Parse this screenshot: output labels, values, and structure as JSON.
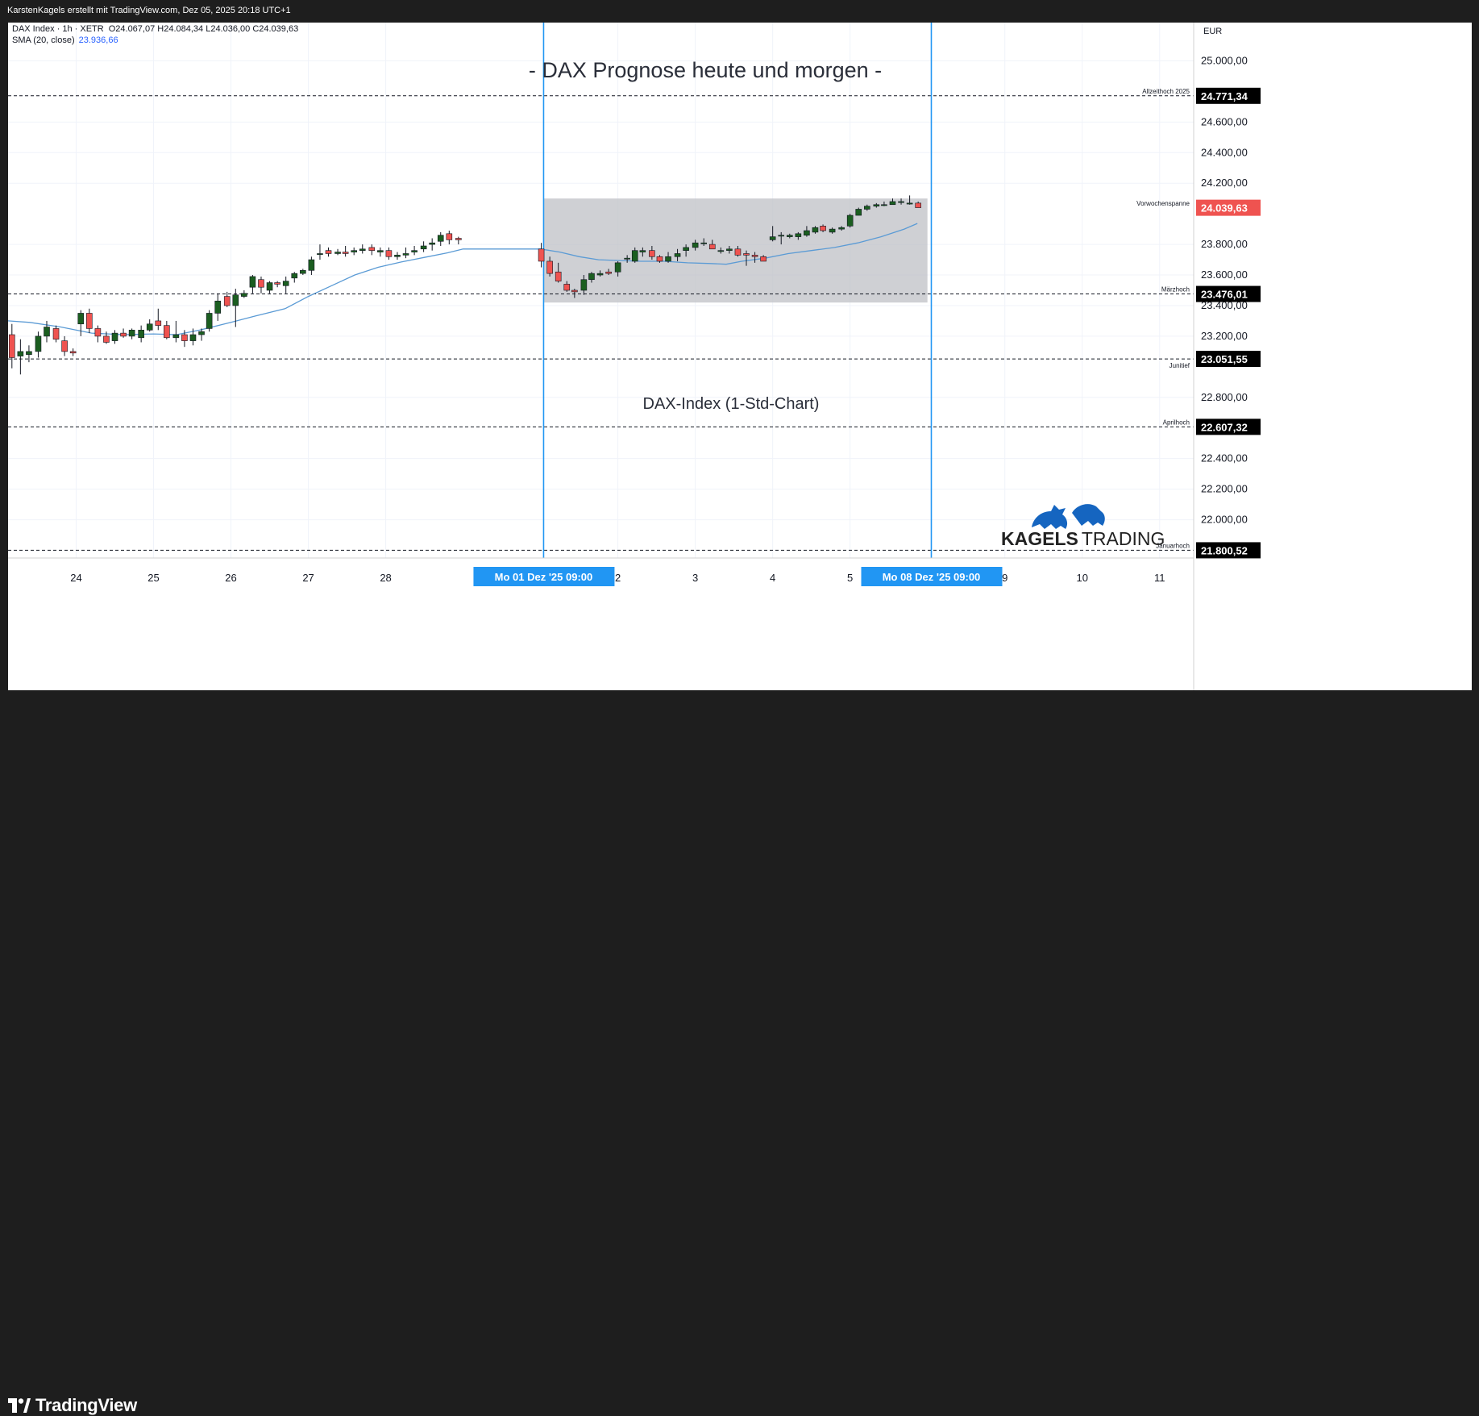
{
  "attribution": "KarstenKagels erstellt mit TradingView.com, Dez 05, 2025 20:18 UTC+1",
  "legend": {
    "symbol": "DAX Index · 1h · XETR",
    "ohlc": "O24.067,07  H24.084,34  L24.036,00  C24.039,63",
    "sma_label": "SMA (20, close)",
    "sma_value": "23.936,66"
  },
  "currency": "EUR",
  "chart_title": "- DAX Prognose heute und morgen -",
  "chart_subtitle": "DAX-Index (1-Std-Chart)",
  "brand": {
    "name": "KAGELS TRADING",
    "color": "#1565c0",
    "icon": "bull-and-bear-icon"
  },
  "footer_logo": {
    "text": "TradingView",
    "icon": "tradingview-logo-icon"
  },
  "colors": {
    "up": "#1b5e20",
    "down": "#ef5350",
    "sma": "#5b9bd5",
    "vline": "#2196f3",
    "price_tag": "#ef5350",
    "box": "#bdbec4"
  },
  "chart_data": {
    "type": "candlestick",
    "title": "- DAX Prognose heute und morgen -",
    "subtitle": "DAX-Index (1-Std-Chart)",
    "ylim": [
      21750,
      25250
    ],
    "y_ticks": [
      {
        "value": 25000,
        "label": "25.000,00"
      },
      {
        "value": 24600,
        "label": "24.600,00"
      },
      {
        "value": 24400,
        "label": "24.400,00"
      },
      {
        "value": 24200,
        "label": "24.200,00"
      },
      {
        "value": 23800,
        "label": "23.800,00"
      },
      {
        "value": 23600,
        "label": "23.600,00"
      },
      {
        "value": 23400,
        "label": "23.400,00"
      },
      {
        "value": 23200,
        "label": "23.200,00"
      },
      {
        "value": 22800,
        "label": "22.800,00"
      },
      {
        "value": 22400,
        "label": "22.400,00"
      },
      {
        "value": 22200,
        "label": "22.200,00"
      },
      {
        "value": 22000,
        "label": "22.000,00"
      }
    ],
    "x_ticks": [
      {
        "x": 24,
        "label": "24"
      },
      {
        "x": 25,
        "label": "25"
      },
      {
        "x": 26,
        "label": "26"
      },
      {
        "x": 27,
        "label": "27"
      },
      {
        "x": 28,
        "label": "28"
      },
      {
        "x": 31,
        "label": "2"
      },
      {
        "x": 32,
        "label": "3"
      },
      {
        "x": 33,
        "label": "4"
      },
      {
        "x": 34,
        "label": "5"
      },
      {
        "x": 36,
        "label": "9"
      },
      {
        "x": 37,
        "label": "10"
      },
      {
        "x": 38,
        "label": "11"
      }
    ],
    "x_range": [
      23.12,
      38.44
    ],
    "levels": [
      {
        "price": 24771.34,
        "label": "24.771,34",
        "name": "Allzeithoch 2025",
        "name_pos": "above"
      },
      {
        "price": 23476.01,
        "label": "23.476,01",
        "name": "Märzhoch",
        "name_pos": "above"
      },
      {
        "price": 23051.55,
        "label": "23.051,55",
        "name": "Junitief",
        "name_pos": "below"
      },
      {
        "price": 22607.32,
        "label": "22.607,32",
        "name": "Aprilhoch",
        "name_pos": "above"
      },
      {
        "price": 21800.52,
        "label": "21.800,52",
        "name": "Januarhoch",
        "name_pos": "above"
      }
    ],
    "current_price": {
      "price": 24039.63,
      "label": "24.039,63"
    },
    "range_box": {
      "x_start": 30.04,
      "x_end": 35.0,
      "top": 24100,
      "bottom": 23420,
      "label": "Vorwochenspanne"
    },
    "vertical_markers": [
      {
        "x": 30.04,
        "label": "Mo 01 Dez '25   09:00"
      },
      {
        "x": 35.05,
        "label": "Mo 08 Dez '25   09:00"
      }
    ],
    "candles": [
      [
        23.17,
        23210,
        23280,
        22990,
        23060
      ],
      [
        23.28,
        23070,
        23180,
        22950,
        23100
      ],
      [
        23.39,
        23080,
        23140,
        23030,
        23100
      ],
      [
        23.51,
        23100,
        23230,
        23060,
        23200
      ],
      [
        23.62,
        23200,
        23300,
        23160,
        23260
      ],
      [
        23.74,
        23250,
        23270,
        23160,
        23180
      ],
      [
        23.85,
        23170,
        23200,
        23070,
        23100
      ],
      [
        23.96,
        23100,
        23120,
        23070,
        23090
      ],
      [
        24.06,
        23280,
        23370,
        23200,
        23350
      ],
      [
        24.17,
        23350,
        23380,
        23220,
        23250
      ],
      [
        24.28,
        23250,
        23270,
        23160,
        23200
      ],
      [
        24.39,
        23200,
        23230,
        23150,
        23160
      ],
      [
        24.5,
        23170,
        23240,
        23150,
        23220
      ],
      [
        24.61,
        23220,
        23250,
        23190,
        23200
      ],
      [
        24.72,
        23200,
        23250,
        23180,
        23240
      ],
      [
        24.84,
        23190,
        23270,
        23160,
        23240
      ],
      [
        24.95,
        23240,
        23310,
        23230,
        23280
      ],
      [
        25.06,
        23300,
        23380,
        23240,
        23270
      ],
      [
        25.17,
        23270,
        23300,
        23180,
        23190
      ],
      [
        25.29,
        23190,
        23300,
        23160,
        23210
      ],
      [
        25.4,
        23210,
        23240,
        23130,
        23170
      ],
      [
        25.51,
        23170,
        23250,
        23140,
        23210
      ],
      [
        25.62,
        23210,
        23250,
        23170,
        23230
      ],
      [
        25.72,
        23250,
        23370,
        23230,
        23350
      ],
      [
        25.83,
        23350,
        23480,
        23300,
        23430
      ],
      [
        25.95,
        23460,
        23490,
        23390,
        23400
      ],
      [
        26.06,
        23400,
        23510,
        23260,
        23470
      ],
      [
        26.17,
        23460,
        23500,
        23450,
        23480
      ],
      [
        26.28,
        23520,
        23600,
        23480,
        23590
      ],
      [
        26.39,
        23570,
        23590,
        23480,
        23520
      ],
      [
        26.5,
        23500,
        23560,
        23480,
        23550
      ],
      [
        26.6,
        23550,
        23560,
        23520,
        23540
      ],
      [
        26.71,
        23530,
        23590,
        23480,
        23560
      ],
      [
        26.82,
        23580,
        23620,
        23550,
        23610
      ],
      [
        26.93,
        23610,
        23640,
        23600,
        23630
      ],
      [
        27.04,
        23630,
        23720,
        23600,
        23700
      ],
      [
        27.15,
        23740,
        23800,
        23700,
        23740
      ],
      [
        27.26,
        23760,
        23780,
        23720,
        23740
      ],
      [
        27.38,
        23740,
        23770,
        23730,
        23750
      ],
      [
        27.48,
        23750,
        23790,
        23720,
        23740
      ],
      [
        27.59,
        23750,
        23780,
        23730,
        23760
      ],
      [
        27.7,
        23760,
        23800,
        23740,
        23770
      ],
      [
        27.82,
        23780,
        23800,
        23730,
        23760
      ],
      [
        27.93,
        23750,
        23780,
        23720,
        23760
      ],
      [
        28.04,
        23760,
        23780,
        23700,
        23720
      ],
      [
        28.15,
        23720,
        23750,
        23700,
        23730
      ],
      [
        28.26,
        23730,
        23780,
        23710,
        23740
      ],
      [
        28.37,
        23750,
        23790,
        23730,
        23760
      ],
      [
        28.49,
        23770,
        23820,
        23750,
        23790
      ],
      [
        28.6,
        23800,
        23840,
        23760,
        23810
      ],
      [
        28.71,
        23820,
        23880,
        23790,
        23860
      ],
      [
        28.82,
        23870,
        23890,
        23800,
        23830
      ],
      [
        28.94,
        23840,
        23850,
        23800,
        23830
      ],
      [
        30.01,
        23770,
        23810,
        23650,
        23690
      ],
      [
        30.12,
        23690,
        23720,
        23590,
        23610
      ],
      [
        30.23,
        23620,
        23680,
        23550,
        23560
      ],
      [
        30.34,
        23540,
        23560,
        23490,
        23500
      ],
      [
        30.44,
        23500,
        23510,
        23450,
        23490
      ],
      [
        30.56,
        23500,
        23600,
        23470,
        23570
      ],
      [
        30.66,
        23570,
        23620,
        23550,
        23610
      ],
      [
        30.77,
        23600,
        23630,
        23590,
        23610
      ],
      [
        30.88,
        23620,
        23640,
        23600,
        23610
      ],
      [
        31.0,
        23620,
        23690,
        23590,
        23680
      ],
      [
        31.12,
        23710,
        23730,
        23680,
        23710
      ],
      [
        31.22,
        23690,
        23780,
        23680,
        23760
      ],
      [
        31.32,
        23750,
        23780,
        23720,
        23760
      ],
      [
        31.44,
        23760,
        23790,
        23700,
        23720
      ],
      [
        31.54,
        23720,
        23730,
        23680,
        23690
      ],
      [
        31.65,
        23690,
        23750,
        23680,
        23720
      ],
      [
        31.77,
        23720,
        23770,
        23690,
        23740
      ],
      [
        31.88,
        23760,
        23800,
        23720,
        23780
      ],
      [
        32.0,
        23780,
        23830,
        23760,
        23810
      ],
      [
        32.11,
        23810,
        23840,
        23790,
        23810
      ],
      [
        32.22,
        23800,
        23830,
        23770,
        23770
      ],
      [
        32.33,
        23760,
        23780,
        23740,
        23760
      ],
      [
        32.44,
        23760,
        23790,
        23740,
        23770
      ],
      [
        32.55,
        23770,
        23790,
        23720,
        23730
      ],
      [
        32.66,
        23740,
        23760,
        23660,
        23730
      ],
      [
        32.77,
        23730,
        23750,
        23680,
        23720
      ],
      [
        32.88,
        23720,
        23730,
        23690,
        23690
      ],
      [
        33.0,
        23830,
        23920,
        23820,
        23850
      ],
      [
        33.11,
        23860,
        23880,
        23800,
        23860
      ],
      [
        33.22,
        23850,
        23870,
        23840,
        23860
      ],
      [
        33.33,
        23850,
        23880,
        23830,
        23870
      ],
      [
        33.44,
        23860,
        23920,
        23850,
        23890
      ],
      [
        33.55,
        23880,
        23920,
        23870,
        23910
      ],
      [
        33.65,
        23920,
        23930,
        23880,
        23890
      ],
      [
        33.77,
        23880,
        23910,
        23870,
        23900
      ],
      [
        33.89,
        23900,
        23920,
        23890,
        23910
      ],
      [
        34.0,
        23920,
        24000,
        23910,
        23990
      ],
      [
        34.11,
        23990,
        24040,
        23990,
        24030
      ],
      [
        34.22,
        24030,
        24060,
        24020,
        24050
      ],
      [
        34.34,
        24050,
        24070,
        24040,
        24060
      ],
      [
        34.44,
        24060,
        24080,
        24050,
        24060
      ],
      [
        34.55,
        24060,
        24100,
        24060,
        24080
      ],
      [
        34.66,
        24080,
        24100,
        24060,
        24080
      ],
      [
        34.77,
        24070,
        24120,
        24060,
        24070
      ],
      [
        34.88,
        24070,
        24080,
        24040,
        24040
      ]
    ],
    "sma": [
      [
        23.12,
        23300
      ],
      [
        23.4,
        23290
      ],
      [
        23.8,
        23260
      ],
      [
        24.2,
        23220
      ],
      [
        24.6,
        23210
      ],
      [
        25.0,
        23215
      ],
      [
        25.3,
        23210
      ],
      [
        25.6,
        23240
      ],
      [
        26.0,
        23290
      ],
      [
        26.3,
        23330
      ],
      [
        26.7,
        23380
      ],
      [
        27.0,
        23460
      ],
      [
        27.3,
        23530
      ],
      [
        27.6,
        23600
      ],
      [
        27.9,
        23650
      ],
      [
        28.2,
        23685
      ],
      [
        28.5,
        23715
      ],
      [
        28.8,
        23745
      ],
      [
        29.0,
        23770
      ],
      [
        30.0,
        23770
      ],
      [
        30.25,
        23750
      ],
      [
        30.5,
        23720
      ],
      [
        30.75,
        23700
      ],
      [
        31.0,
        23695
      ],
      [
        31.3,
        23690
      ],
      [
        31.6,
        23690
      ],
      [
        31.9,
        23680
      ],
      [
        32.2,
        23675
      ],
      [
        32.4,
        23670
      ],
      [
        32.6,
        23690
      ],
      [
        32.9,
        23710
      ],
      [
        33.2,
        23740
      ],
      [
        33.5,
        23760
      ],
      [
        33.8,
        23780
      ],
      [
        34.1,
        23810
      ],
      [
        34.4,
        23850
      ],
      [
        34.7,
        23900
      ],
      [
        34.87,
        23937
      ]
    ]
  }
}
